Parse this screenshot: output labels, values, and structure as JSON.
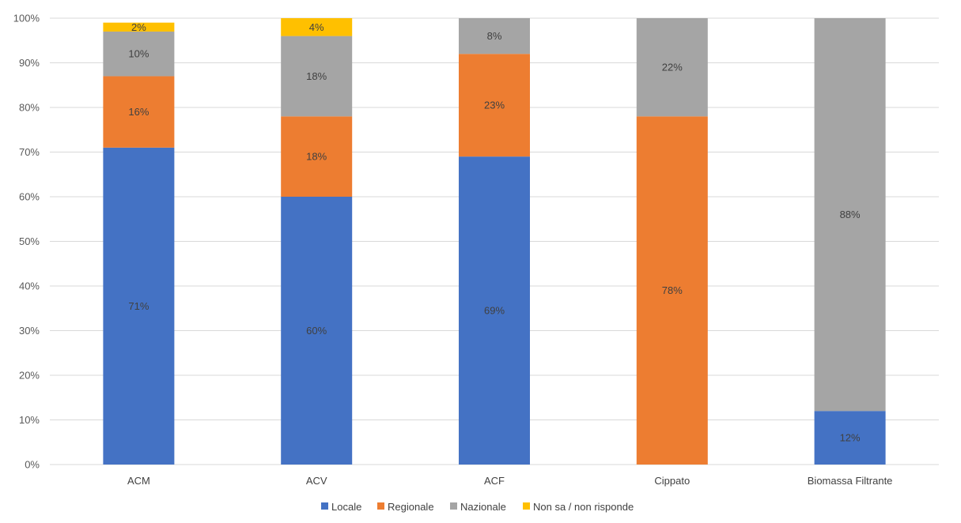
{
  "chart_data": {
    "type": "bar",
    "stacked": true,
    "percent_stacked": true,
    "categories": [
      "ACM",
      "ACV",
      "ACF",
      "Cippato",
      "Biomassa Filtrante"
    ],
    "series": [
      {
        "name": "Locale",
        "color": "#4472C4",
        "values": [
          71,
          60,
          69,
          0,
          12
        ]
      },
      {
        "name": "Regionale",
        "color": "#ED7D31",
        "values": [
          16,
          18,
          23,
          78,
          0
        ]
      },
      {
        "name": "Nazionale",
        "color": "#A5A5A5",
        "values": [
          10,
          18,
          8,
          22,
          88
        ]
      },
      {
        "name": "Non sa / non risponde",
        "color": "#FFC000",
        "values": [
          2,
          4,
          0,
          0,
          0
        ]
      }
    ],
    "data_labels": [
      [
        "71%",
        "60%",
        "69%",
        "",
        "12%"
      ],
      [
        "16%",
        "18%",
        "23%",
        "78%",
        ""
      ],
      [
        "10%",
        "18%",
        "8%",
        "22%",
        "88%"
      ],
      [
        "2%",
        "4%",
        "",
        "",
        ""
      ]
    ],
    "y_ticks": [
      "0%",
      "10%",
      "20%",
      "30%",
      "40%",
      "50%",
      "60%",
      "70%",
      "80%",
      "90%",
      "100%"
    ],
    "ylim": [
      0,
      100
    ],
    "grid": true,
    "legend_position": "bottom"
  }
}
